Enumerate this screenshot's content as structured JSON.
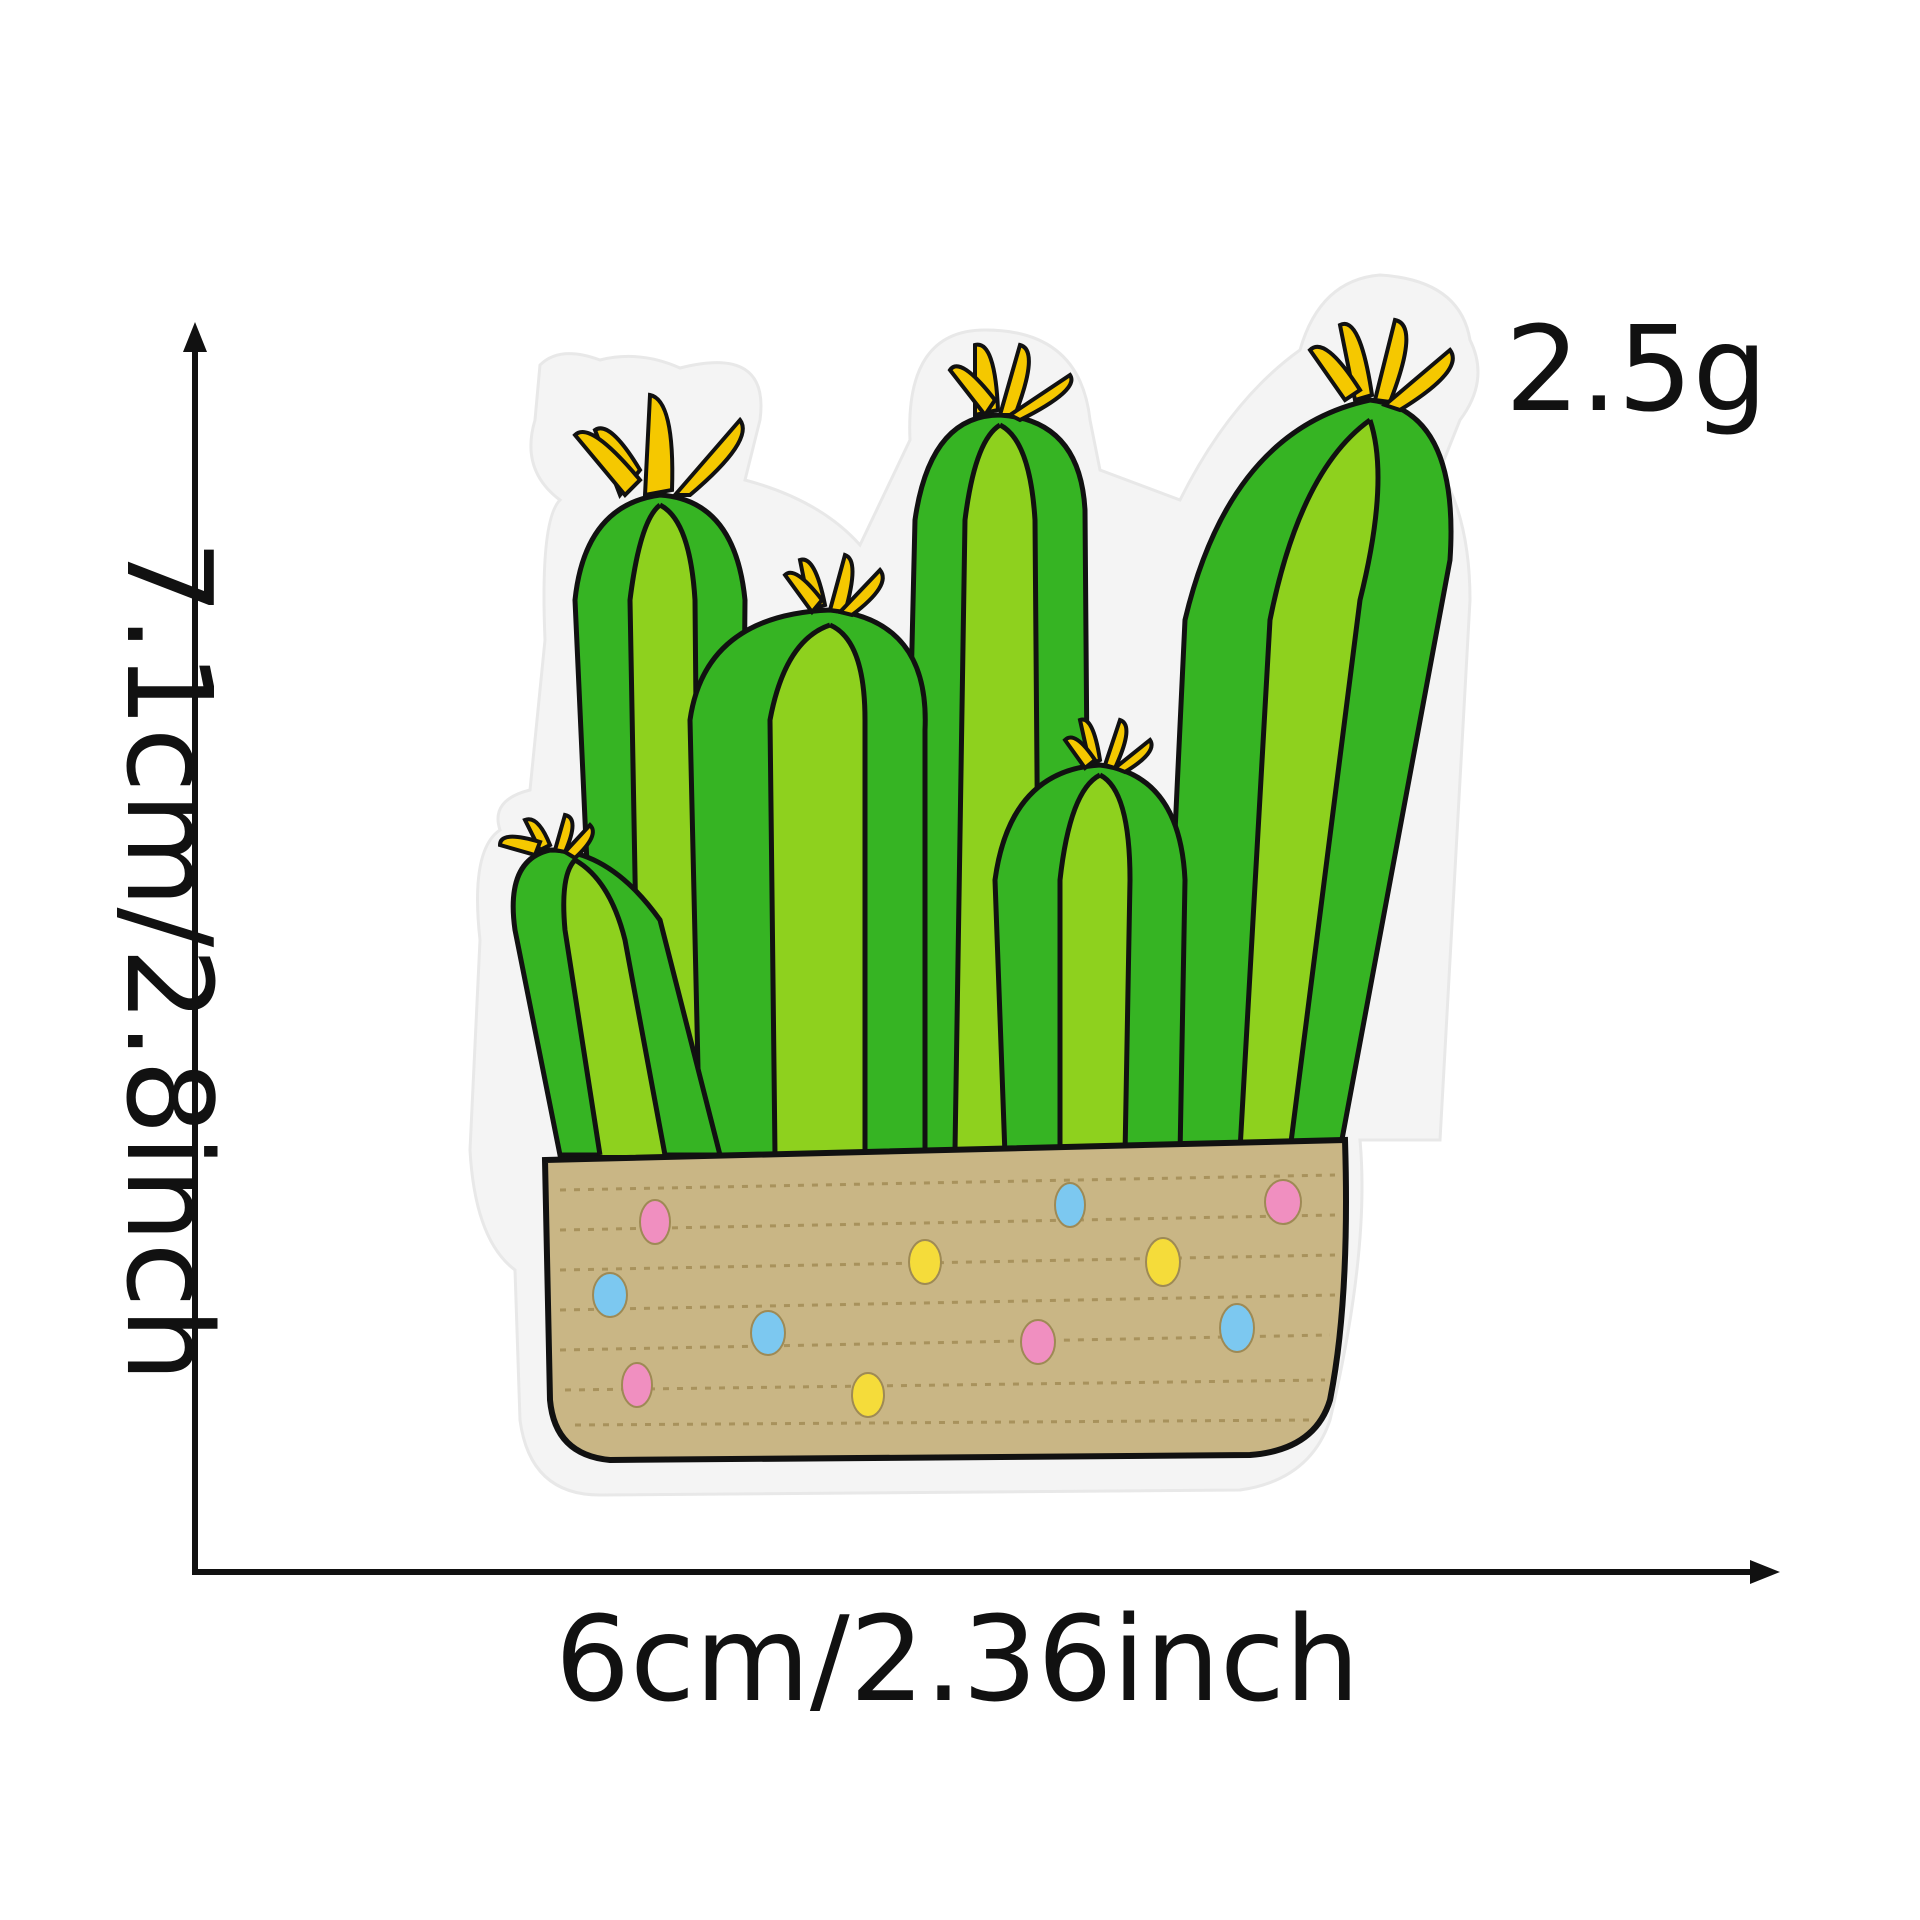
{
  "product": {
    "subject": "cactus-pot-embroidered-patch",
    "weight_label": "2.5g",
    "width_label": "6cm/2.36inch",
    "height_label": "7.1cm/2.8inch"
  },
  "colors": {
    "background": "#ffffff",
    "felt_border": "#f7f7f7",
    "cactus_dark": "#2fae1e",
    "cactus_light": "#8ed11e",
    "outline": "#111111",
    "flower": "#f5c800",
    "pot": "#c9b685",
    "dot_pink": "#f08fc0",
    "dot_blue": "#7cc8f0",
    "dot_yellow": "#f5dc3a"
  }
}
